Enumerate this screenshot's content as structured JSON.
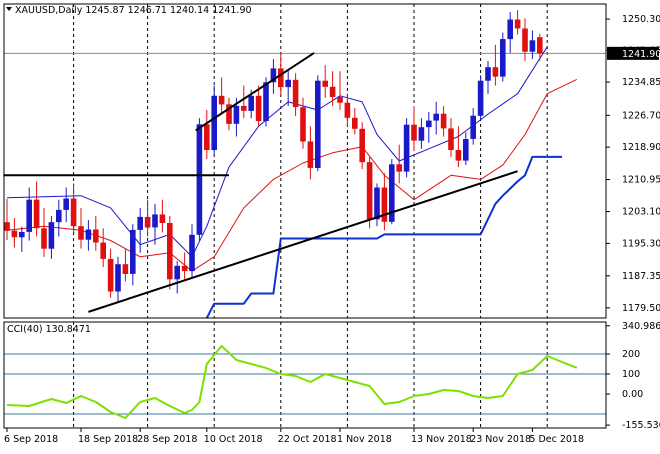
{
  "header": {
    "symbol_line": "XAUUSD,Daily  1245.87 1246.71 1240.14 1241.90"
  },
  "indicator": {
    "label": "CCI(40) 130.8471"
  },
  "colors": {
    "bull": "#1a1ac8",
    "bear": "#e01010",
    "ma_fast": "#1a1ac8",
    "ma_slow": "#e01010",
    "stop_line": "#1030d0",
    "trendline": "#000000",
    "cci": "#7ee000",
    "cci_levels": "#3a7aa0",
    "grid": "#b8b8b8"
  },
  "chart_data": [
    {
      "type": "candlestick",
      "title": "XAUUSD,Daily",
      "ohlc_readout": [
        1245.87,
        1246.71,
        1240.14,
        1241.9
      ],
      "ylim": [
        1177,
        1254
      ],
      "y_ticks": [
        "1250.30",
        "1242.65",
        "1234.85",
        "1226.70",
        "1218.90",
        "1210.95",
        "1203.10",
        "1195.30",
        "1187.35",
        "1179.50"
      ],
      "y_tick_values": [
        1250.3,
        1242.65,
        1234.85,
        1226.7,
        1218.9,
        1210.95,
        1203.1,
        1195.3,
        1187.35,
        1179.5
      ],
      "current_price_label": "1241.90",
      "current_price": 1241.9,
      "x_labels": [
        "6 Sep 2018",
        "18 Sep 2018",
        "28 Sep 2018",
        "10 Oct 2018",
        "22 Oct 2018",
        "1 Nov 2018",
        "13 Nov 2018",
        "23 Nov 2018",
        "5 Dec 2018"
      ],
      "x_label_bar_index": [
        0,
        10,
        18,
        27,
        37,
        45,
        55,
        63,
        71
      ],
      "vertical_gridline_bar_index": [
        9,
        19,
        28,
        37,
        46,
        55,
        64,
        73
      ],
      "candles": [
        [
          1200.5,
          1206.2,
          1196.1,
          1198.4
        ],
        [
          1198.4,
          1201.5,
          1194.3,
          1196.8
        ],
        [
          1196.8,
          1199.4,
          1193.2,
          1198.1
        ],
        [
          1198.1,
          1209.0,
          1196.0,
          1206.0
        ],
        [
          1206.0,
          1210.5,
          1197.0,
          1199.0
        ],
        [
          1199.0,
          1204.0,
          1192.0,
          1194.0
        ],
        [
          1194.0,
          1202.0,
          1191.5,
          1200.5
        ],
        [
          1200.5,
          1206.0,
          1197.0,
          1203.5
        ],
        [
          1203.5,
          1209.0,
          1200.5,
          1206.3
        ],
        [
          1206.3,
          1210.0,
          1198.0,
          1199.5
        ],
        [
          1199.5,
          1204.0,
          1194.0,
          1196.2
        ],
        [
          1196.2,
          1201.0,
          1193.5,
          1198.7
        ],
        [
          1198.7,
          1202.0,
          1193.5,
          1195.5
        ],
        [
          1195.5,
          1199.0,
          1189.5,
          1191.5
        ],
        [
          1191.5,
          1194.0,
          1182.0,
          1183.5
        ],
        [
          1183.5,
          1192.0,
          1181.0,
          1190.2
        ],
        [
          1190.2,
          1194.0,
          1186.0,
          1187.8
        ],
        [
          1187.8,
          1200.0,
          1185.0,
          1198.6
        ],
        [
          1198.6,
          1204.0,
          1193.0,
          1201.8
        ],
        [
          1201.8,
          1206.0,
          1197.0,
          1199.2
        ],
        [
          1199.2,
          1205.0,
          1195.0,
          1202.4
        ],
        [
          1202.4,
          1206.0,
          1198.0,
          1200.3
        ],
        [
          1200.3,
          1202.0,
          1184.0,
          1186.5
        ],
        [
          1186.5,
          1191.0,
          1183.0,
          1189.8
        ],
        [
          1189.8,
          1193.0,
          1186.5,
          1188.5
        ],
        [
          1188.5,
          1200.0,
          1187.0,
          1197.4
        ],
        [
          1197.4,
          1226.0,
          1196.0,
          1224.5
        ],
        [
          1224.5,
          1228.0,
          1216.0,
          1218.2
        ],
        [
          1218.2,
          1234.0,
          1217.0,
          1231.5
        ],
        [
          1231.5,
          1236.0,
          1227.0,
          1229.4
        ],
        [
          1229.4,
          1231.0,
          1223.0,
          1224.6
        ],
        [
          1224.6,
          1231.0,
          1221.5,
          1229.0
        ],
        [
          1229.0,
          1234.0,
          1226.0,
          1227.8
        ],
        [
          1227.8,
          1233.0,
          1226.0,
          1231.5
        ],
        [
          1231.5,
          1234.0,
          1224.0,
          1225.3
        ],
        [
          1225.3,
          1236.0,
          1224.0,
          1234.8
        ],
        [
          1234.8,
          1240.5,
          1232.0,
          1238.2
        ],
        [
          1238.2,
          1242.0,
          1231.5,
          1233.6
        ],
        [
          1233.6,
          1238.0,
          1229.0,
          1235.4
        ],
        [
          1235.4,
          1237.0,
          1226.5,
          1228.7
        ],
        [
          1228.7,
          1231.0,
          1218.5,
          1220.3
        ],
        [
          1220.3,
          1224.0,
          1211.0,
          1213.8
        ],
        [
          1213.8,
          1236.5,
          1213.0,
          1235.2
        ],
        [
          1235.2,
          1239.0,
          1231.0,
          1233.7
        ],
        [
          1233.7,
          1237.5,
          1229.0,
          1231.2
        ],
        [
          1231.2,
          1237.5,
          1228.0,
          1229.8
        ],
        [
          1229.8,
          1232.0,
          1224.0,
          1226.1
        ],
        [
          1226.1,
          1228.5,
          1222.0,
          1223.4
        ],
        [
          1223.4,
          1225.0,
          1213.5,
          1215.2
        ],
        [
          1215.2,
          1216.5,
          1199.0,
          1201.2
        ],
        [
          1201.2,
          1210.0,
          1199.5,
          1209.0
        ],
        [
          1209.0,
          1212.5,
          1198.5,
          1200.6
        ],
        [
          1200.6,
          1216.0,
          1200.0,
          1214.7
        ],
        [
          1214.7,
          1219.5,
          1210.0,
          1212.9
        ],
        [
          1212.9,
          1226.0,
          1211.5,
          1224.4
        ],
        [
          1224.4,
          1229.0,
          1218.0,
          1220.5
        ],
        [
          1220.5,
          1226.0,
          1218.5,
          1223.8
        ],
        [
          1223.8,
          1227.5,
          1220.0,
          1225.4
        ],
        [
          1225.4,
          1230.0,
          1222.0,
          1227.1
        ],
        [
          1227.1,
          1229.0,
          1221.5,
          1223.5
        ],
        [
          1223.5,
          1226.0,
          1216.5,
          1218.2
        ],
        [
          1218.2,
          1224.0,
          1214.0,
          1215.6
        ],
        [
          1215.6,
          1222.5,
          1214.5,
          1220.9
        ],
        [
          1220.9,
          1228.5,
          1219.5,
          1226.6
        ],
        [
          1226.6,
          1236.5,
          1225.5,
          1235.2
        ],
        [
          1235.2,
          1240.0,
          1232.0,
          1238.5
        ],
        [
          1238.5,
          1244.0,
          1234.0,
          1236.2
        ],
        [
          1236.2,
          1247.0,
          1235.0,
          1245.4
        ],
        [
          1245.4,
          1252.0,
          1242.0,
          1250.2
        ],
        [
          1250.2,
          1252.5,
          1246.5,
          1248.0
        ],
        [
          1248.0,
          1250.5,
          1240.0,
          1242.3
        ],
        [
          1242.3,
          1247.5,
          1240.5,
          1245.1
        ],
        [
          1245.87,
          1246.71,
          1240.14,
          1241.9
        ]
      ],
      "ma_fast": [
        [
          0,
          1206.5
        ],
        [
          10,
          1207.0
        ],
        [
          14,
          1204.0
        ],
        [
          18,
          1195.0
        ],
        [
          22,
          1197.5
        ],
        [
          25,
          1192.0
        ],
        [
          27,
          1199.5
        ],
        [
          30,
          1214.0
        ],
        [
          34,
          1224.0
        ],
        [
          38,
          1230.0
        ],
        [
          42,
          1228.0
        ],
        [
          45,
          1231.5
        ],
        [
          48,
          1230.0
        ],
        [
          50,
          1222.0
        ],
        [
          53,
          1215.5
        ],
        [
          57,
          1218.5
        ],
        [
          61,
          1221.5
        ],
        [
          65,
          1227.0
        ],
        [
          69,
          1232.0
        ],
        [
          73,
          1243.5
        ]
      ],
      "ma_slow": [
        [
          0,
          1198.5
        ],
        [
          5,
          1199.5
        ],
        [
          10,
          1198.5
        ],
        [
          14,
          1196.0
        ],
        [
          18,
          1192.0
        ],
        [
          22,
          1193.0
        ],
        [
          25,
          1188.5
        ],
        [
          28,
          1192.0
        ],
        [
          32,
          1204.0
        ],
        [
          36,
          1211.0
        ],
        [
          40,
          1215.0
        ],
        [
          44,
          1217.5
        ],
        [
          48,
          1219.0
        ],
        [
          51,
          1212.0
        ],
        [
          55,
          1206.0
        ],
        [
          60,
          1212.0
        ],
        [
          64,
          1211.0
        ],
        [
          67,
          1214.5
        ],
        [
          70,
          1222.0
        ],
        [
          73,
          1232.0
        ],
        [
          77,
          1235.5
        ]
      ],
      "stop_line": [
        [
          27,
          1177.0
        ],
        [
          28,
          1180.5
        ],
        [
          32,
          1180.5
        ],
        [
          33,
          1183.0
        ],
        [
          36,
          1183.0
        ],
        [
          37,
          1196.5
        ],
        [
          50,
          1196.5
        ],
        [
          51,
          1197.5
        ],
        [
          64,
          1197.5
        ],
        [
          66,
          1205.0
        ],
        [
          67,
          1207.0
        ],
        [
          69,
          1210.5
        ],
        [
          70,
          1212.0
        ],
        [
          71,
          1216.5
        ],
        [
          75,
          1216.5
        ]
      ],
      "trendlines": [
        [
          [
            -0.5,
            1212.0
          ],
          [
            30,
            1212.0
          ]
        ],
        [
          [
            11,
            1178.5
          ],
          [
            69,
            1213.0
          ]
        ],
        [
          [
            25.5,
            1223.0
          ],
          [
            41.5,
            1242.0
          ]
        ]
      ]
    },
    {
      "type": "line",
      "title": "CCI(40)",
      "current_value": 130.8471,
      "ylim": [
        -170,
        360
      ],
      "y_ticks": [
        "340.9865",
        "200",
        "100",
        "0.00",
        "-155.5362"
      ],
      "y_tick_values": [
        340.9865,
        200,
        100,
        0,
        -155.5362
      ],
      "level_lines": [
        200,
        100,
        -100
      ],
      "series": [
        [
          0,
          -55
        ],
        [
          3,
          -60
        ],
        [
          6,
          -25
        ],
        [
          8,
          -45
        ],
        [
          10,
          -10
        ],
        [
          12,
          -40
        ],
        [
          14,
          -90
        ],
        [
          16,
          -120
        ],
        [
          18,
          -40
        ],
        [
          20,
          -20
        ],
        [
          22,
          -60
        ],
        [
          24,
          -95
        ],
        [
          25,
          -80
        ],
        [
          26,
          -40
        ],
        [
          27,
          150
        ],
        [
          29,
          240
        ],
        [
          31,
          170
        ],
        [
          33,
          150
        ],
        [
          35,
          130
        ],
        [
          37,
          100
        ],
        [
          39,
          90
        ],
        [
          41,
          60
        ],
        [
          43,
          100
        ],
        [
          45,
          80
        ],
        [
          47,
          60
        ],
        [
          49,
          40
        ],
        [
          51,
          -50
        ],
        [
          53,
          -40
        ],
        [
          55,
          -10
        ],
        [
          57,
          0
        ],
        [
          59,
          20
        ],
        [
          61,
          15
        ],
        [
          63,
          -10
        ],
        [
          65,
          -20
        ],
        [
          67,
          -10
        ],
        [
          69,
          100
        ],
        [
          71,
          120
        ],
        [
          73,
          190
        ],
        [
          75,
          160
        ],
        [
          77,
          131
        ]
      ]
    }
  ]
}
